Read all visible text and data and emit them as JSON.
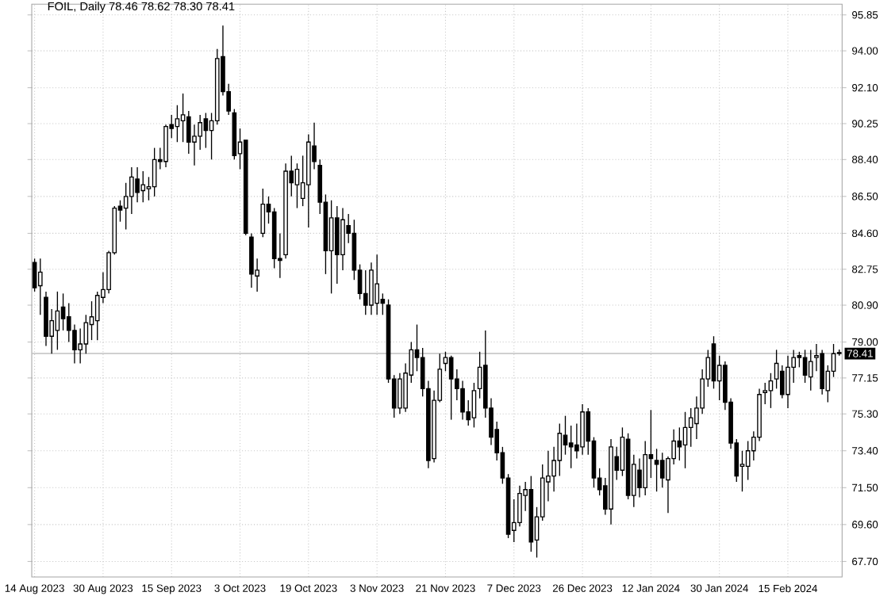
{
  "chart_data": {
    "type": "candlestick",
    "title": "FOIL, Daily 78.46 78.62 78.30 78.41",
    "categories": [
      "14 Aug 2023",
      null,
      null,
      null,
      null,
      null,
      null,
      null,
      null,
      null,
      null,
      null,
      "30 Aug 2023",
      null,
      null,
      null,
      null,
      null,
      null,
      null,
      null,
      null,
      null,
      null,
      "15 Sep 2023",
      null,
      null,
      null,
      null,
      null,
      null,
      null,
      null,
      null,
      null,
      null,
      "3 Oct 2023",
      null,
      null,
      null,
      null,
      null,
      null,
      null,
      null,
      null,
      null,
      null,
      "19 Oct 2023",
      null,
      null,
      null,
      null,
      null,
      null,
      null,
      null,
      null,
      null,
      null,
      "3 Nov 2023",
      null,
      null,
      null,
      null,
      null,
      null,
      null,
      null,
      null,
      null,
      null,
      "21 Nov 2023",
      null,
      null,
      null,
      null,
      null,
      null,
      null,
      null,
      null,
      null,
      null,
      "7 Dec 2023",
      null,
      null,
      null,
      null,
      null,
      null,
      null,
      null,
      null,
      null,
      null,
      "26 Dec 2023",
      null,
      null,
      null,
      null,
      null,
      null,
      null,
      null,
      null,
      null,
      null,
      "12 Jan 2024",
      null,
      null,
      null,
      null,
      null,
      null,
      null,
      null,
      null,
      null,
      null,
      "30 Jan 2024",
      null,
      null,
      null,
      null,
      null,
      null,
      null,
      null,
      null,
      null,
      null,
      "15 Feb 2024",
      null,
      null,
      null,
      null,
      null,
      null,
      null,
      null,
      null
    ],
    "series": [
      {
        "color": "#000000",
        "ohlc": [
          [
            83.1,
            83.3,
            81.6,
            81.8
          ],
          [
            81.9,
            83.3,
            80.4,
            82.6
          ],
          [
            81.3,
            81.6,
            78.8,
            79.3
          ],
          [
            79.3,
            80.7,
            78.4,
            80.1
          ],
          [
            79.6,
            81.6,
            78.6,
            80.6
          ],
          [
            80.8,
            81.5,
            79.6,
            80.2
          ],
          [
            80.3,
            81.0,
            79.0,
            79.6
          ],
          [
            79.6,
            79.9,
            77.9,
            78.6
          ],
          [
            78.6,
            79.7,
            77.9,
            78.9
          ],
          [
            78.9,
            80.4,
            78.4,
            80.0
          ],
          [
            79.9,
            81.1,
            79.1,
            80.3
          ],
          [
            80.1,
            81.6,
            79.1,
            81.4
          ],
          [
            81.3,
            82.6,
            81.0,
            81.7
          ],
          [
            81.7,
            83.7,
            81.5,
            83.6
          ],
          [
            83.6,
            86.0,
            83.5,
            85.9
          ],
          [
            86.0,
            86.3,
            85.2,
            85.8
          ],
          [
            85.9,
            87.2,
            84.8,
            86.5
          ],
          [
            86.5,
            88.0,
            85.6,
            87.5
          ],
          [
            87.4,
            88.0,
            86.2,
            86.7
          ],
          [
            86.8,
            87.8,
            86.2,
            87.1
          ],
          [
            86.9,
            87.5,
            86.3,
            87.0
          ],
          [
            87.0,
            89.0,
            86.5,
            88.4
          ],
          [
            88.4,
            89.0,
            87.9,
            88.3
          ],
          [
            88.3,
            90.2,
            88.0,
            90.1
          ],
          [
            90.2,
            90.7,
            89.5,
            90.0
          ],
          [
            90.1,
            91.2,
            89.3,
            90.5
          ],
          [
            90.4,
            91.8,
            89.3,
            90.7
          ],
          [
            90.6,
            90.9,
            88.7,
            89.3
          ],
          [
            89.3,
            90.2,
            88.1,
            89.6
          ],
          [
            89.6,
            90.7,
            88.9,
            90.3
          ],
          [
            90.5,
            90.8,
            89.0,
            89.9
          ],
          [
            89.9,
            90.8,
            88.4,
            90.4
          ],
          [
            90.4,
            94.1,
            90.2,
            93.6
          ],
          [
            93.7,
            95.3,
            91.7,
            91.9
          ],
          [
            91.9,
            92.3,
            90.7,
            90.9
          ],
          [
            90.8,
            91.0,
            88.4,
            88.6
          ],
          [
            88.7,
            90.0,
            87.9,
            89.3
          ],
          [
            89.4,
            89.4,
            84.5,
            84.6
          ],
          [
            84.4,
            84.6,
            81.8,
            82.5
          ],
          [
            82.4,
            83.3,
            81.6,
            82.7
          ],
          [
            84.6,
            86.9,
            84.4,
            86.1
          ],
          [
            86.1,
            86.5,
            85.1,
            85.7
          ],
          [
            85.7,
            85.9,
            82.8,
            83.3
          ],
          [
            83.3,
            84.6,
            82.3,
            83.2
          ],
          [
            83.5,
            88.2,
            83.3,
            87.8
          ],
          [
            87.8,
            88.6,
            86.5,
            87.2
          ],
          [
            87.1,
            88.2,
            85.9,
            87.9
          ],
          [
            86.4,
            88.6,
            86.0,
            87.2
          ],
          [
            87.1,
            89.7,
            84.9,
            89.3
          ],
          [
            89.1,
            90.3,
            87.9,
            88.3
          ],
          [
            88.1,
            88.4,
            85.6,
            86.2
          ],
          [
            86.2,
            86.6,
            82.5,
            83.7
          ],
          [
            83.7,
            86.3,
            81.5,
            85.4
          ],
          [
            85.4,
            86.0,
            82.0,
            83.5
          ],
          [
            83.5,
            85.9,
            82.7,
            85.3
          ],
          [
            85.0,
            85.6,
            84.1,
            84.6
          ],
          [
            84.6,
            85.3,
            82.2,
            82.7
          ],
          [
            82.7,
            83.0,
            81.2,
            81.5
          ],
          [
            81.5,
            82.7,
            80.4,
            80.9
          ],
          [
            80.9,
            83.1,
            80.4,
            82.7
          ],
          [
            81.0,
            83.5,
            80.4,
            82.0
          ],
          [
            81.2,
            81.5,
            80.4,
            81.0
          ],
          [
            80.9,
            81.2,
            76.9,
            77.1
          ],
          [
            77.1,
            77.3,
            75.1,
            75.6
          ],
          [
            75.6,
            77.4,
            75.3,
            77.1
          ],
          [
            75.6,
            77.9,
            75.4,
            77.4
          ],
          [
            77.3,
            79.0,
            76.9,
            78.6
          ],
          [
            78.6,
            79.9,
            77.5,
            78.2
          ],
          [
            78.2,
            78.7,
            76.2,
            76.6
          ],
          [
            76.6,
            77.0,
            72.5,
            72.9
          ],
          [
            73.0,
            76.5,
            72.8,
            76.0
          ],
          [
            76.0,
            78.4,
            75.9,
            77.6
          ],
          [
            77.9,
            78.5,
            77.5,
            78.2
          ],
          [
            78.2,
            78.3,
            75.0,
            77.1
          ],
          [
            77.1,
            77.6,
            76.0,
            76.6
          ],
          [
            76.6,
            77.0,
            75.0,
            75.4
          ],
          [
            75.4,
            76.0,
            74.7,
            75.0
          ],
          [
            75.1,
            76.9,
            74.6,
            76.5
          ],
          [
            76.6,
            78.5,
            76.1,
            77.7
          ],
          [
            77.8,
            79.6,
            75.1,
            75.6
          ],
          [
            75.6,
            76.1,
            73.7,
            74.1
          ],
          [
            74.5,
            74.9,
            72.9,
            73.3
          ],
          [
            73.3,
            73.6,
            71.7,
            72.0
          ],
          [
            72.0,
            72.2,
            68.9,
            69.1
          ],
          [
            69.3,
            70.9,
            68.7,
            69.7
          ],
          [
            69.7,
            71.6,
            69.5,
            71.2
          ],
          [
            71.1,
            71.8,
            70.3,
            71.4
          ],
          [
            71.4,
            72.1,
            68.2,
            68.7
          ],
          [
            68.8,
            70.5,
            67.9,
            70.0
          ],
          [
            70.0,
            72.7,
            69.8,
            72.0
          ],
          [
            71.8,
            73.4,
            70.8,
            72.1
          ],
          [
            72.1,
            73.6,
            71.3,
            72.9
          ],
          [
            72.9,
            74.8,
            72.1,
            74.3
          ],
          [
            74.2,
            75.2,
            73.2,
            73.7
          ],
          [
            73.8,
            74.7,
            72.5,
            73.6
          ],
          [
            73.7,
            74.8,
            73.0,
            73.4
          ],
          [
            73.6,
            75.8,
            73.2,
            75.4
          ],
          [
            75.4,
            75.6,
            73.2,
            73.9
          ],
          [
            73.9,
            74.1,
            71.5,
            72.0
          ],
          [
            72.0,
            72.5,
            71.1,
            71.4
          ],
          [
            71.6,
            72.0,
            70.1,
            70.4
          ],
          [
            70.4,
            74.0,
            69.6,
            73.6
          ],
          [
            73.1,
            73.6,
            71.9,
            72.4
          ],
          [
            72.4,
            74.6,
            72.1,
            74.1
          ],
          [
            74.0,
            74.3,
            70.9,
            71.1
          ],
          [
            71.1,
            73.2,
            70.5,
            72.7
          ],
          [
            72.4,
            73.0,
            71.0,
            71.5
          ],
          [
            71.5,
            73.9,
            71.1,
            73.2
          ],
          [
            73.2,
            75.5,
            72.0,
            73.0
          ],
          [
            72.9,
            73.5,
            71.3,
            72.7
          ],
          [
            72.9,
            73.3,
            71.5,
            72.0
          ],
          [
            71.9,
            73.1,
            70.2,
            73.0
          ],
          [
            73.0,
            74.5,
            72.7,
            73.9
          ],
          [
            73.9,
            74.6,
            72.9,
            73.6
          ],
          [
            73.7,
            75.4,
            72.5,
            74.6
          ],
          [
            74.6,
            75.6,
            73.6,
            75.1
          ],
          [
            74.8,
            76.2,
            74.0,
            75.6
          ],
          [
            75.6,
            77.6,
            75.3,
            77.1
          ],
          [
            77.1,
            78.6,
            76.7,
            78.2
          ],
          [
            78.9,
            79.3,
            76.6,
            77.0
          ],
          [
            77.0,
            78.3,
            76.0,
            77.8
          ],
          [
            77.8,
            78.0,
            75.5,
            75.9
          ],
          [
            75.9,
            76.1,
            73.5,
            73.8
          ],
          [
            73.8,
            74.0,
            71.8,
            72.1
          ],
          [
            72.6,
            73.4,
            71.3,
            72.7
          ],
          [
            72.6,
            73.9,
            71.9,
            73.4
          ],
          [
            73.4,
            74.4,
            72.9,
            74.1
          ],
          [
            74.1,
            76.6,
            73.9,
            76.3
          ],
          [
            76.4,
            76.9,
            75.8,
            76.5
          ],
          [
            76.5,
            77.4,
            75.6,
            77.0
          ],
          [
            77.1,
            78.6,
            76.6,
            77.9
          ],
          [
            77.5,
            77.8,
            76.1,
            76.3
          ],
          [
            76.3,
            78.3,
            75.6,
            77.7
          ],
          [
            77.7,
            78.6,
            76.9,
            78.2
          ],
          [
            78.3,
            78.5,
            77.7,
            78.2
          ],
          [
            78.2,
            78.6,
            76.9,
            77.3
          ],
          [
            77.2,
            78.6,
            76.5,
            78.0
          ],
          [
            78.2,
            78.9,
            77.5,
            78.3
          ],
          [
            78.4,
            78.6,
            76.3,
            76.6
          ],
          [
            76.5,
            77.8,
            75.9,
            77.5
          ],
          [
            77.5,
            78.9,
            77.2,
            78.4
          ],
          [
            78.46,
            78.62,
            78.3,
            78.41
          ]
        ]
      }
    ],
    "ylim": [
      66.9,
      96.4
    ],
    "yticks": [
      {
        "value": 95.85,
        "label": "95.85"
      },
      {
        "value": 94.0,
        "label": "94.00"
      },
      {
        "value": 92.1,
        "label": "92.10"
      },
      {
        "value": 90.25,
        "label": "90.25"
      },
      {
        "value": 88.4,
        "label": "88.40"
      },
      {
        "value": 86.5,
        "label": "86.50"
      },
      {
        "value": 84.6,
        "label": "84.60"
      },
      {
        "value": 82.75,
        "label": "82.75"
      },
      {
        "value": 80.9,
        "label": "80.90"
      },
      {
        "value": 79.0,
        "label": "79.00"
      },
      {
        "value": 77.15,
        "label": "77.15"
      },
      {
        "value": 75.3,
        "label": "75.30"
      },
      {
        "value": 73.4,
        "label": "73.40"
      },
      {
        "value": 71.5,
        "label": "71.50"
      },
      {
        "value": 69.6,
        "label": "69.60"
      },
      {
        "value": 67.7,
        "label": "67.70"
      }
    ],
    "ref_lines": [
      {
        "axis": "y",
        "value": 78.41,
        "label": "78.41",
        "color": "#c0c0c0"
      }
    ],
    "grid": true
  }
}
